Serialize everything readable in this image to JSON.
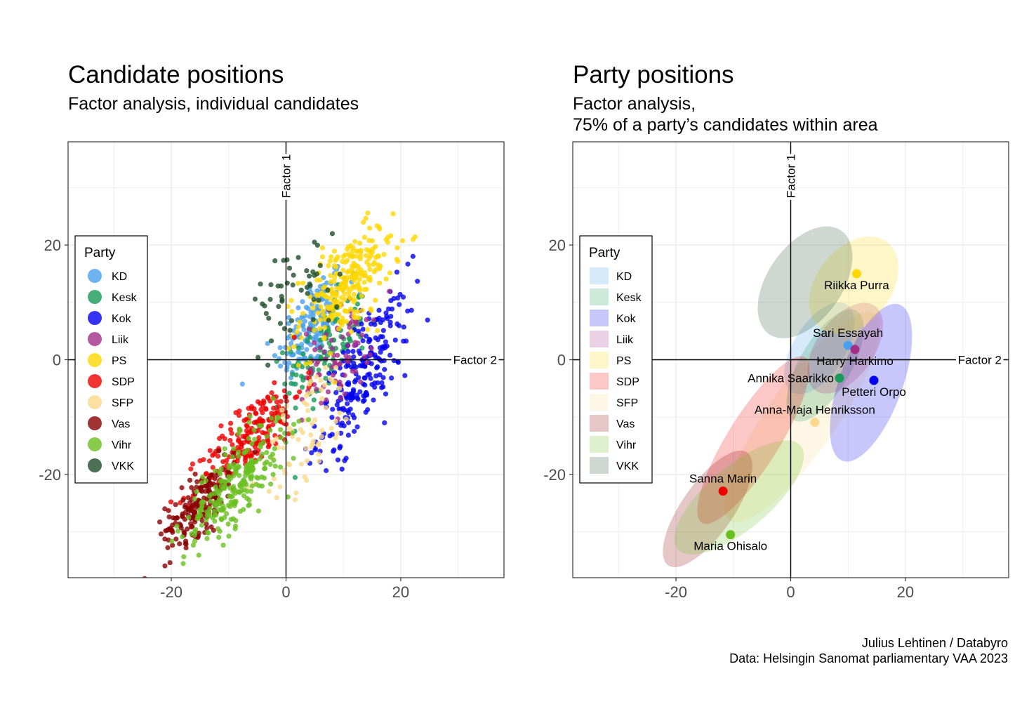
{
  "left_panel": {
    "title": "Candidate positions",
    "subtitle_lines": [
      "Factor analysis, individual candidates"
    ]
  },
  "right_panel": {
    "title": "Party positions",
    "subtitle_lines": [
      "Factor analysis,",
      "75% of a party’s candidates within area"
    ]
  },
  "caption": {
    "author": "Julius Lehtinen / Databyro",
    "source": "Data: Helsingin Sanomat parliamentary VAA 2023"
  },
  "chart_data": [
    {
      "type": "scatter",
      "title": "Candidate positions",
      "subtitle": "Factor analysis, individual candidates",
      "x_axis_label": "Factor 2",
      "y_axis_label": "Factor 1",
      "xlim": [
        -38,
        38
      ],
      "ylim": [
        -38,
        38
      ],
      "x_ticks": [
        -20,
        0,
        20
      ],
      "y_ticks": [
        -20,
        0,
        20
      ],
      "grid": true,
      "legend": {
        "title": "Party",
        "position": "left",
        "entries": [
          "KD",
          "Kesk",
          "Kok",
          "Liik",
          "PS",
          "SDP",
          "SFP",
          "Vas",
          "Vihr",
          "VKK"
        ]
      },
      "colors": {
        "KD": "#4aa0ee",
        "Kesk": "#1a9a58",
        "Kok": "#0000ee",
        "Liik": "#a32e8a",
        "PS": "#ffd700",
        "SDP": "#ee0000",
        "SFP": "#fad98a",
        "Vas": "#8b0000",
        "Vihr": "#6abf20",
        "VKK": "#1f4d2a"
      },
      "series": [
        {
          "name": "KD",
          "center": [
            4.5,
            6.0
          ],
          "sd": [
            3.0,
            5.0
          ],
          "rho": 0.6,
          "n": 160
        },
        {
          "name": "Kesk",
          "center": [
            7.0,
            1.5
          ],
          "sd": [
            3.5,
            5.0
          ],
          "rho": 0.5,
          "n": 120
        },
        {
          "name": "Kok",
          "center": [
            13.5,
            -2.5
          ],
          "sd": [
            4.0,
            7.0
          ],
          "rho": 0.75,
          "n": 230
        },
        {
          "name": "Liik",
          "center": [
            9.0,
            1.0
          ],
          "sd": [
            3.0,
            4.5
          ],
          "rho": 0.4,
          "n": 80
        },
        {
          "name": "PS",
          "center": [
            10.5,
            13.0
          ],
          "sd": [
            4.0,
            5.0
          ],
          "rho": 0.6,
          "n": 260
        },
        {
          "name": "SDP",
          "center": [
            -6.0,
            -13.0
          ],
          "sd": [
            4.5,
            5.0
          ],
          "rho": 0.8,
          "n": 210
        },
        {
          "name": "SFP",
          "center": [
            4.0,
            -12.0
          ],
          "sd": [
            4.0,
            6.0
          ],
          "rho": 0.6,
          "n": 70
        },
        {
          "name": "Vas",
          "center": [
            -15.0,
            -25.0
          ],
          "sd": [
            3.0,
            3.5
          ],
          "rho": 0.7,
          "n": 190
        },
        {
          "name": "Vihr",
          "center": [
            -9.0,
            -22.0
          ],
          "sd": [
            4.5,
            5.5
          ],
          "rho": 0.75,
          "n": 250
        },
        {
          "name": "VKK",
          "center": [
            1.5,
            12.0
          ],
          "sd": [
            4.0,
            4.5
          ],
          "rho": 0.3,
          "n": 50
        }
      ]
    },
    {
      "type": "scatter",
      "title": "Party positions",
      "subtitle": "Factor analysis, 75% of a party’s candidates within area",
      "x_axis_label": "Factor 2",
      "y_axis_label": "Factor 1",
      "xlim": [
        -38,
        38
      ],
      "ylim": [
        -38,
        38
      ],
      "x_ticks": [
        -20,
        0,
        20
      ],
      "y_ticks": [
        -20,
        0,
        20
      ],
      "grid": true,
      "legend": {
        "title": "Party",
        "position": "left",
        "entries": [
          "KD",
          "Kesk",
          "Kok",
          "Liik",
          "PS",
          "SDP",
          "SFP",
          "Vas",
          "Vihr",
          "VKK"
        ]
      },
      "ellipses": [
        {
          "party": "SFP",
          "center": [
            2.0,
            -10.0
          ],
          "rx": 6.0,
          "ry": 22.0,
          "angle": 35
        },
        {
          "party": "KD",
          "center": [
            5.0,
            2.0
          ],
          "rx": 4.5,
          "ry": 9.0,
          "angle": 32
        },
        {
          "party": "Kesk",
          "center": [
            6.0,
            -1.0
          ],
          "rx": 4.5,
          "ry": 11.0,
          "angle": 30
        },
        {
          "party": "Kok",
          "center": [
            14.0,
            -4.0
          ],
          "rx": 5.5,
          "ry": 14.5,
          "angle": 20
        },
        {
          "party": "Liik",
          "center": [
            9.5,
            2.0
          ],
          "rx": 5.0,
          "ry": 9.0,
          "angle": 35
        },
        {
          "party": "PS",
          "center": [
            11.0,
            13.0
          ],
          "rx": 6.5,
          "ry": 9.5,
          "angle": 38
        },
        {
          "party": "VKK",
          "center": [
            2.5,
            13.5
          ],
          "rx": 6.5,
          "ry": 11.0,
          "angle": 35
        },
        {
          "party": "SDP",
          "center": [
            -6.5,
            -14.0
          ],
          "rx": 4.5,
          "ry": 17.0,
          "angle": 32
        },
        {
          "party": "Vas",
          "center": [
            -14.5,
            -26.0
          ],
          "rx": 4.5,
          "ry": 12.0,
          "angle": 35
        },
        {
          "party": "Vihr",
          "center": [
            -9.0,
            -24.0
          ],
          "rx": 5.5,
          "ry": 14.0,
          "angle": 50
        }
      ],
      "leaders": [
        {
          "name": "Riikka Purra",
          "party": "PS",
          "x": 11.5,
          "y": 15.0,
          "label_pos": "below"
        },
        {
          "name": "Sari Essayah",
          "party": "KD",
          "x": 10.0,
          "y": 2.5,
          "label_pos": "above"
        },
        {
          "name": "Harry Harkimo",
          "party": "Liik",
          "x": 11.2,
          "y": 1.8,
          "label_pos": "below"
        },
        {
          "name": "Annika Saarikko",
          "party": "Kesk",
          "x": 8.5,
          "y": -3.2,
          "label_pos": "left"
        },
        {
          "name": "Petteri Orpo",
          "party": "Kok",
          "x": 14.5,
          "y": -3.6,
          "label_pos": "below"
        },
        {
          "name": "Anna-Maja Henriksson",
          "party": "SFP",
          "x": 4.2,
          "y": -10.9,
          "label_pos": "above"
        },
        {
          "name": "Sanna Marin",
          "party": "SDP",
          "x": -11.8,
          "y": -22.9,
          "label_pos": "above"
        },
        {
          "name": "Maria Ohisalo",
          "party": "Vihr",
          "x": -10.5,
          "y": -30.5,
          "label_pos": "below"
        }
      ]
    }
  ]
}
